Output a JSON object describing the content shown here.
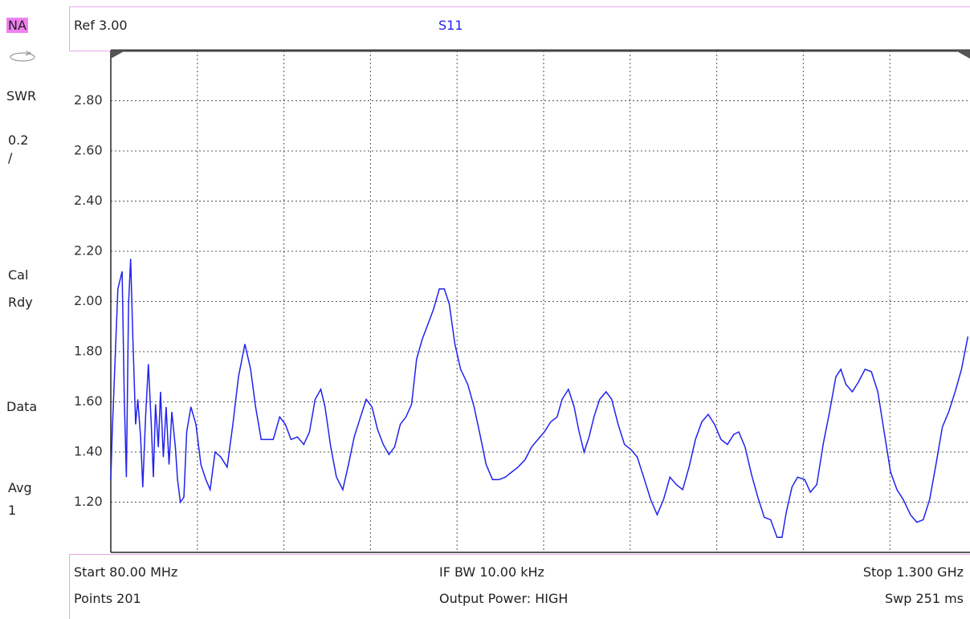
{
  "sidebar": {
    "mode": "NA",
    "format": "SWR",
    "scale": "0.2",
    "scale_unit": "/",
    "cal_1": "Cal",
    "cal_2": "Rdy",
    "trace": "Data",
    "avg_1": "Avg",
    "avg_2": "1"
  },
  "header": {
    "ref": "Ref 3.00",
    "measurement": "S11"
  },
  "footer": {
    "start": "Start 80.00 MHz",
    "ifbw": "IF BW 10.00 kHz",
    "stop": "Stop 1.300 GHz",
    "points": "Points 201",
    "power": "Output Power: HIGH",
    "sweep": "Swp 251 ms"
  },
  "chart_data": {
    "type": "line",
    "color": "#2222ee",
    "xlim": [
      80,
      1300
    ],
    "ylim": [
      1,
      3
    ],
    "xticks": [
      202,
      324,
      446,
      568,
      690,
      812,
      934,
      1056,
      1178
    ],
    "yticks": [
      {
        "value": 1.2,
        "label": "1.20"
      },
      {
        "value": 1.4,
        "label": "1.40"
      },
      {
        "value": 1.6,
        "label": "1.60"
      },
      {
        "value": 1.8,
        "label": "1.80"
      },
      {
        "value": 2.0,
        "label": "2.00"
      },
      {
        "value": 2.2,
        "label": "2.20"
      },
      {
        "value": 2.4,
        "label": "2.40"
      },
      {
        "value": 2.6,
        "label": "2.60"
      },
      {
        "value": 2.8,
        "label": "2.80"
      }
    ],
    "grid": true,
    "x": [
      80,
      82,
      90,
      96,
      99,
      102,
      105,
      108,
      111,
      115,
      118,
      122,
      125,
      129,
      133,
      137,
      140,
      143,
      147,
      150,
      154,
      158,
      162,
      166,
      171,
      174,
      178,
      183,
      187,
      193,
      200,
      207,
      214,
      220,
      227,
      235,
      244,
      252,
      260,
      269,
      277,
      284,
      292,
      300,
      309,
      318,
      326,
      334,
      343,
      352,
      360,
      368,
      376,
      382,
      390,
      398,
      407,
      415,
      423,
      432,
      440,
      448,
      456,
      464,
      472,
      480,
      488,
      496,
      504,
      511,
      519,
      527,
      535,
      543,
      550,
      557,
      565,
      573,
      583,
      592,
      601,
      609,
      618,
      627,
      636,
      645,
      654,
      664,
      673,
      682,
      691,
      700,
      709,
      716,
      725,
      733,
      740,
      747,
      754,
      761,
      769,
      778,
      786,
      795,
      804,
      813,
      822,
      831,
      841,
      850,
      859,
      868,
      877,
      886,
      895,
      904,
      913,
      922,
      931,
      940,
      949,
      958,
      965,
      974,
      983,
      992,
      1001,
      1010,
      1019,
      1026,
      1032,
      1040,
      1048,
      1058,
      1066,
      1075,
      1084,
      1093,
      1102,
      1109,
      1116,
      1125,
      1134,
      1143,
      1152,
      1161,
      1170,
      1179,
      1188,
      1197,
      1207,
      1216,
      1225,
      1234,
      1243,
      1252,
      1261,
      1270,
      1279,
      1288
    ],
    "values": [
      1.29,
      1.48,
      2.05,
      2.12,
      1.61,
      1.3,
      1.99,
      2.17,
      1.86,
      1.51,
      1.61,
      1.46,
      1.26,
      1.54,
      1.75,
      1.51,
      1.3,
      1.59,
      1.42,
      1.64,
      1.38,
      1.58,
      1.35,
      1.56,
      1.42,
      1.29,
      1.2,
      1.22,
      1.48,
      1.58,
      1.51,
      1.35,
      1.29,
      1.25,
      1.4,
      1.38,
      1.34,
      1.51,
      1.7,
      1.83,
      1.73,
      1.58,
      1.45,
      1.45,
      1.45,
      1.54,
      1.51,
      1.45,
      1.46,
      1.43,
      1.48,
      1.61,
      1.65,
      1.58,
      1.42,
      1.3,
      1.25,
      1.35,
      1.46,
      1.54,
      1.61,
      1.58,
      1.49,
      1.43,
      1.39,
      1.42,
      1.51,
      1.54,
      1.59,
      1.77,
      1.85,
      1.91,
      1.97,
      2.05,
      2.05,
      1.99,
      1.83,
      1.73,
      1.67,
      1.58,
      1.46,
      1.35,
      1.29,
      1.29,
      1.3,
      1.32,
      1.34,
      1.37,
      1.42,
      1.45,
      1.48,
      1.52,
      1.54,
      1.61,
      1.65,
      1.58,
      1.48,
      1.4,
      1.46,
      1.54,
      1.61,
      1.64,
      1.61,
      1.51,
      1.43,
      1.41,
      1.38,
      1.3,
      1.21,
      1.15,
      1.21,
      1.3,
      1.27,
      1.25,
      1.34,
      1.45,
      1.52,
      1.55,
      1.51,
      1.45,
      1.43,
      1.47,
      1.48,
      1.42,
      1.31,
      1.22,
      1.14,
      1.13,
      1.06,
      1.06,
      1.16,
      1.26,
      1.3,
      1.29,
      1.24,
      1.27,
      1.43,
      1.56,
      1.7,
      1.73,
      1.67,
      1.64,
      1.68,
      1.73,
      1.72,
      1.64,
      1.48,
      1.32,
      1.25,
      1.21,
      1.15,
      1.12,
      1.13,
      1.21,
      1.35,
      1.5,
      1.56,
      1.64,
      1.73,
      1.86
    ]
  }
}
